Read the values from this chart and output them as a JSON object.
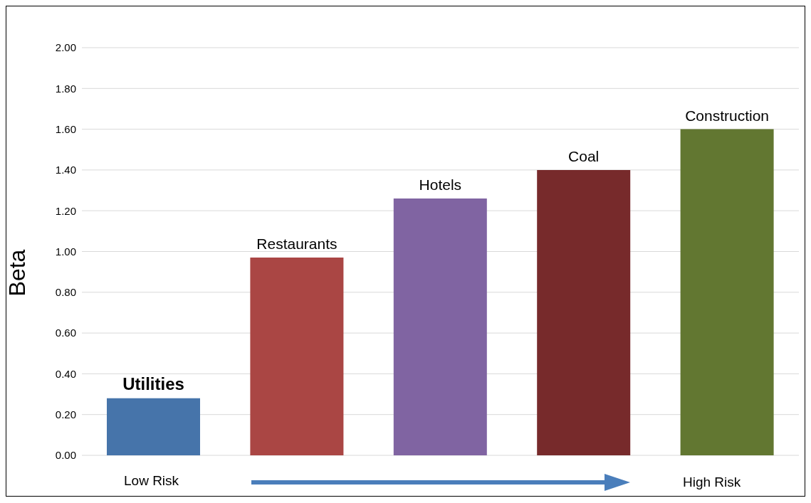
{
  "chart_data": {
    "type": "bar",
    "ylabel": "Beta",
    "categories": [
      "Utilities",
      "Restaurants",
      "Hotels",
      "Coal",
      "Construction"
    ],
    "values": [
      0.28,
      0.97,
      1.26,
      1.4,
      1.6
    ],
    "colors": [
      "#4674aa",
      "#aa4644",
      "#8064a2",
      "#772a2b",
      "#627731"
    ],
    "ylim": [
      0,
      2
    ],
    "yticks": [
      {
        "value": 0,
        "label": "0.00"
      },
      {
        "value": 0.2,
        "label": "0.20"
      },
      {
        "value": 0.4,
        "label": "0.40"
      },
      {
        "value": 0.6,
        "label": "0.60"
      },
      {
        "value": 0.8,
        "label": "0.80"
      },
      {
        "value": 1,
        "label": "1.00"
      },
      {
        "value": 1.2,
        "label": "1.20"
      },
      {
        "value": 1.4,
        "label": "1.40"
      },
      {
        "value": 1.6,
        "label": "1.60"
      },
      {
        "value": 1.8,
        "label": "1.80"
      },
      {
        "value": 2,
        "label": "2.00"
      }
    ],
    "grid": "y",
    "tick_labels": "y",
    "annotations": [
      "Low Risk",
      "High Risk"
    ]
  }
}
